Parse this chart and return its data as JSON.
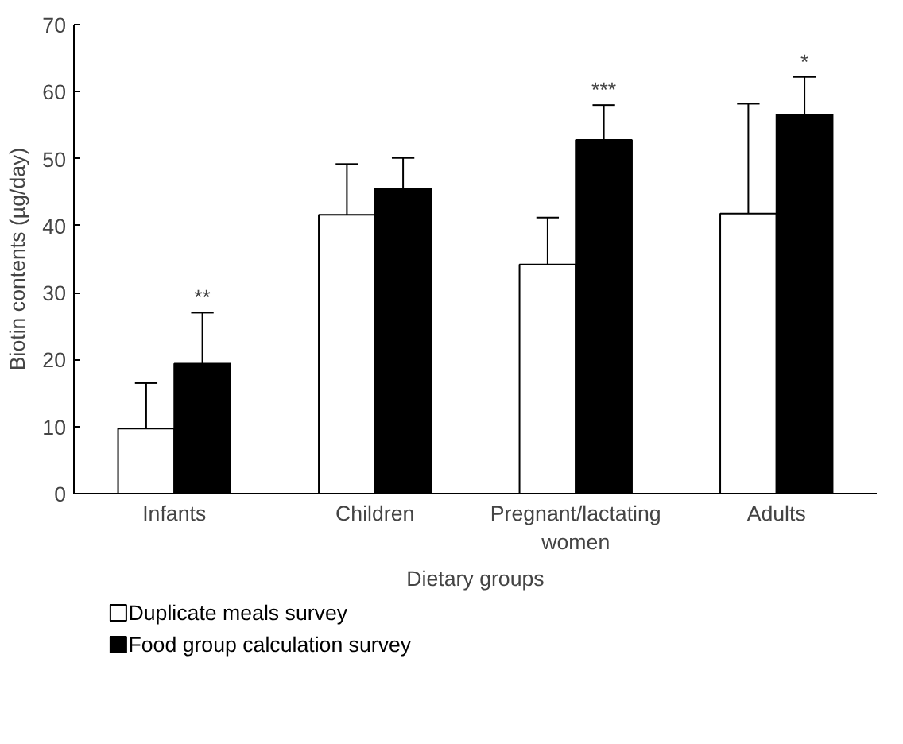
{
  "chart_data": {
    "type": "bar",
    "xlabel": "Dietary groups",
    "ylabel": "Biotin contents (µg/day)",
    "categories": [
      "Infants",
      "Children",
      "Pregnant/lactating\nwomen",
      "Adults"
    ],
    "series": [
      {
        "name": "Duplicate meals survey",
        "color": "#ffffff",
        "values": [
          9.7,
          41.6,
          34.2,
          41.8
        ],
        "errors": [
          [
            9.7,
            16.5
          ],
          [
            41.6,
            49.2
          ],
          [
            34.2,
            41.2
          ],
          [
            41.8,
            58.2
          ]
        ]
      },
      {
        "name": "Food group calculation survey",
        "color": "#000000",
        "values": [
          19.4,
          45.5,
          52.8,
          56.6
        ],
        "errors": [
          [
            19.4,
            27.0
          ],
          [
            45.5,
            50.1
          ],
          [
            52.8,
            58.0
          ],
          [
            56.6,
            62.2
          ]
        ]
      }
    ],
    "annotations": [
      {
        "text": "**",
        "x": "Infants",
        "y": 19.4
      },
      {
        "text": "***",
        "x": "Pregnant/lactating\nwomen",
        "y": 52.8
      },
      {
        "text": "*",
        "x": "Adults",
        "y": 56.6
      }
    ],
    "ylim": [
      0,
      70
    ],
    "yticks": [
      0,
      10,
      20,
      30,
      40,
      50,
      60,
      70
    ],
    "grid": false,
    "legend": "bottom"
  }
}
